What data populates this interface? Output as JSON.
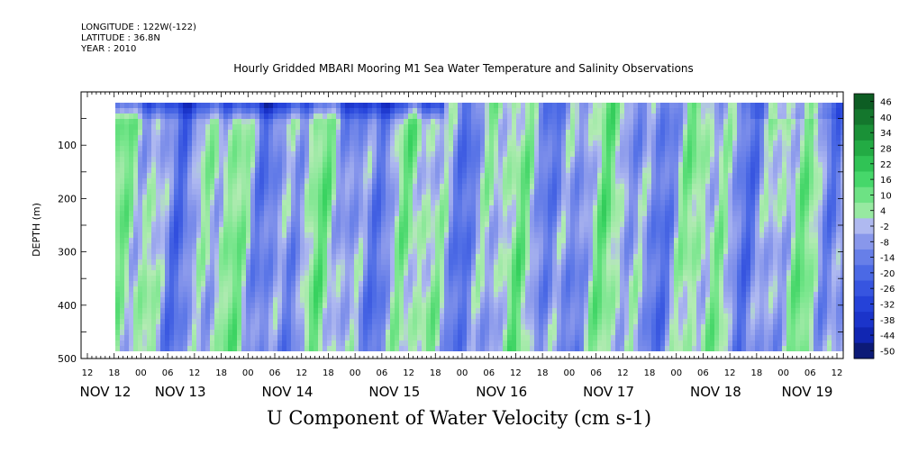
{
  "header": {
    "longitude": "LONGITUDE : 122W(-122)",
    "latitude": "LATITUDE : 36.8N",
    "year": "YEAR : 2010"
  },
  "chart_data": {
    "type": "heatmap",
    "title": "Hourly Gridded MBARI Mooring M1 Sea Water Temperature and Salinity Observations",
    "xlabel": "U Component of Water Velocity (cm s-1)",
    "ylabel": "DEPTH (m)",
    "ylim": [
      500,
      0
    ],
    "yticks": [
      100,
      200,
      300,
      400,
      500
    ],
    "xticks": [
      "12",
      "18",
      "00",
      "06",
      "12",
      "18",
      "00",
      "06",
      "12",
      "18",
      "00",
      "06",
      "12",
      "18",
      "00",
      "06",
      "12",
      "18",
      "00",
      "06",
      "12",
      "18",
      "00",
      "06",
      "12",
      "18",
      "00",
      "06",
      "12"
    ],
    "date_labels": [
      "NOV 12",
      "NOV 13",
      "NOV 14",
      "NOV 15",
      "NOV 16",
      "NOV 17",
      "NOV 18",
      "NOV 19"
    ],
    "colorbar_ticks": [
      46,
      40,
      34,
      28,
      22,
      16,
      10,
      4,
      -2,
      -8,
      -14,
      -20,
      -26,
      -32,
      -38,
      -44,
      -50
    ],
    "colorbar_range": [
      -50,
      50
    ],
    "data_extent": {
      "depth": [
        20,
        490
      ],
      "time_start": "NOV 12 18",
      "time_end": "NOV 19 12"
    },
    "colors": {
      "negative": "#5a6be0",
      "near_zero": "#a8b6f0",
      "positive": "#3ed86a"
    }
  }
}
